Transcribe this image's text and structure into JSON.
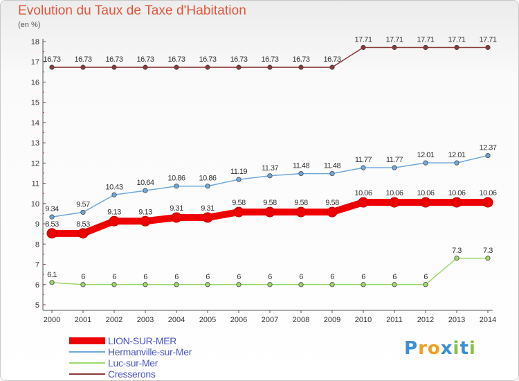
{
  "title": "Evolution du Taux de Taxe d'Habitation",
  "subtitle": "(en %)",
  "chart_data": {
    "type": "line",
    "title": "Evolution du Taux de Taxe d'Habitation",
    "ylabel": "(en %)",
    "xlabel": "",
    "ylim": [
      5,
      18
    ],
    "yticks": [
      5,
      6,
      7,
      8,
      9,
      10,
      11,
      12,
      13,
      14,
      15,
      16,
      17,
      18
    ],
    "grid": false,
    "legend_position": "bottom-left",
    "x": [
      "2000",
      "2001",
      "2002",
      "2003",
      "2004",
      "2005",
      "2006",
      "2007",
      "2008",
      "2009",
      "2010",
      "2011",
      "2012",
      "2013",
      "2014"
    ],
    "series": [
      {
        "name": "LION-SUR-MER",
        "color": "#ee0000",
        "values": [
          8.53,
          8.53,
          9.13,
          9.13,
          9.31,
          9.31,
          9.58,
          9.58,
          9.58,
          9.58,
          10.06,
          10.06,
          10.06,
          10.06,
          10.06
        ],
        "labels": [
          "8.53",
          "8.53",
          "9.13",
          "9.13",
          "9.31",
          "9.31",
          "9.58",
          "9.58",
          "9.58",
          "9.58",
          "10.06",
          "10.06",
          "10.06",
          "10.06",
          "10.06"
        ]
      },
      {
        "name": "Hermanville-sur-Mer",
        "color": "#6fa8dc",
        "values": [
          9.34,
          9.57,
          10.43,
          10.64,
          10.86,
          10.86,
          11.19,
          11.37,
          11.48,
          11.48,
          11.77,
          11.77,
          12.01,
          12.01,
          12.37
        ],
        "labels": [
          "9.34",
          "9.57",
          "10.43",
          "10.64",
          "10.86",
          "10.86",
          "11.19",
          "11.37",
          "11.48",
          "11.48",
          "11.77",
          "11.77",
          "12.01",
          "12.01",
          "12.37"
        ]
      },
      {
        "name": "Luc-sur-Mer",
        "color": "#9ed86a",
        "values": [
          6.1,
          6,
          6,
          6,
          6,
          6,
          6,
          6,
          6,
          6,
          6,
          6,
          6,
          7.3,
          7.3
        ],
        "labels": [
          "6.1",
          "6",
          "6",
          "6",
          "6",
          "6",
          "6",
          "6",
          "6",
          "6",
          "6",
          "6",
          "6",
          "7.3",
          "7.3"
        ]
      },
      {
        "name": "Cresserons",
        "color": "#8b3a3a",
        "values": [
          16.73,
          16.73,
          16.73,
          16.73,
          16.73,
          16.73,
          16.73,
          16.73,
          16.73,
          16.73,
          17.71,
          17.71,
          17.71,
          17.71,
          17.71
        ],
        "labels": [
          "16.73",
          "16.73",
          "16.73",
          "16.73",
          "16.73",
          "16.73",
          "16.73",
          "16.73",
          "16.73",
          "16.73",
          "17.71",
          "17.71",
          "17.71",
          "17.71",
          "17.71"
        ]
      }
    ]
  },
  "legend": [
    {
      "label": "LION-SUR-MER",
      "color": "#ee0000"
    },
    {
      "label": "Hermanville-sur-Mer",
      "color": "#6fa8dc"
    },
    {
      "label": "Luc-sur-Mer",
      "color": "#9ed86a"
    },
    {
      "label": "Cresserons",
      "color": "#8b3a3a"
    }
  ],
  "logo": {
    "letters": [
      "P",
      "r",
      "o",
      "x",
      "i",
      "t",
      "i"
    ],
    "colors": [
      "#3a8fd6",
      "#f0a020",
      "#f0a020",
      "#3a8fd6",
      "#88c040",
      "#3a8fd6",
      "#88c040"
    ]
  }
}
